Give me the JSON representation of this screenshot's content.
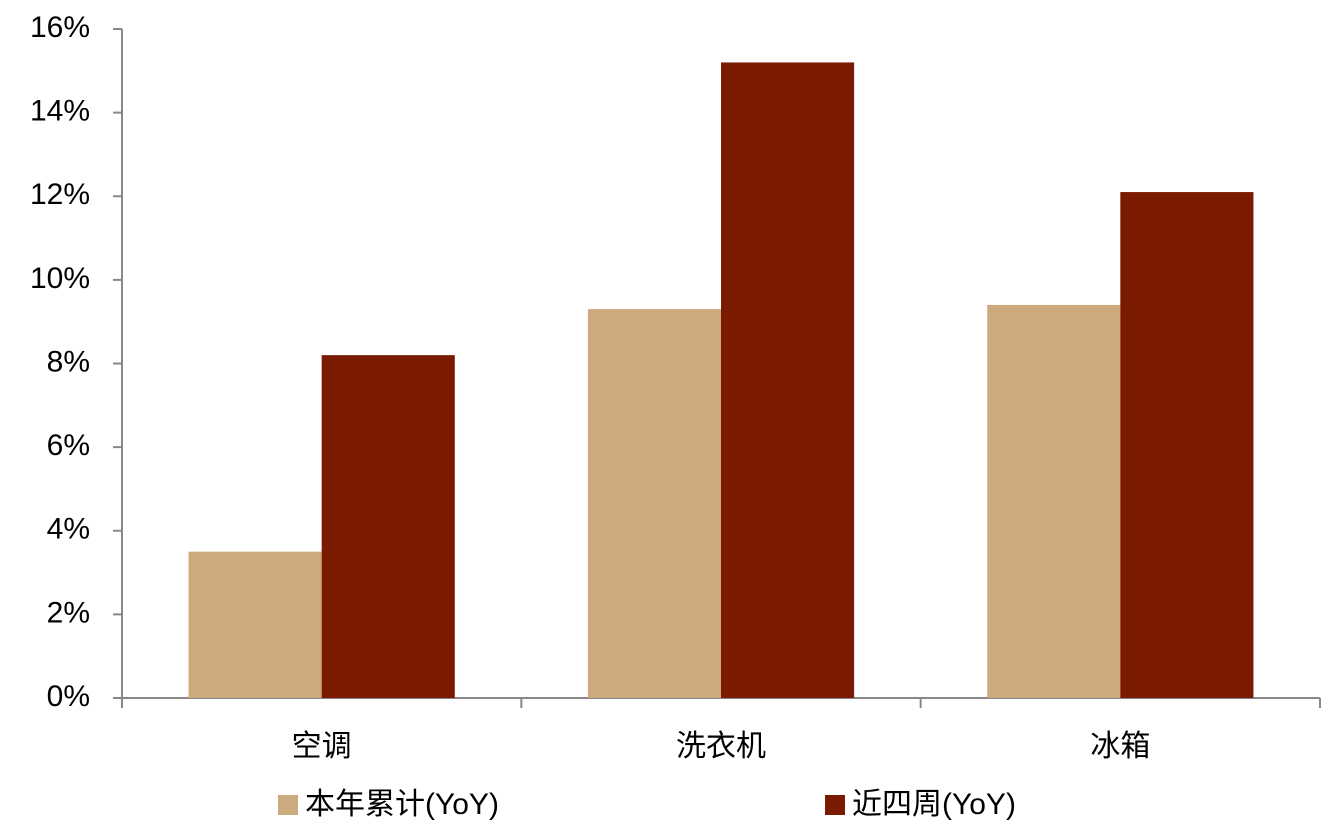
{
  "chart_data": {
    "type": "bar",
    "categories": [
      "空调",
      "洗衣机",
      "冰箱"
    ],
    "series": [
      {
        "name": "本年累计(YoY)",
        "color": "#cdaa7d",
        "values": [
          3.5,
          9.3,
          9.4
        ]
      },
      {
        "name": "近四周(YoY)",
        "color": "#7a1a00",
        "values": [
          8.2,
          15.2,
          12.1
        ]
      }
    ],
    "ylim": [
      0,
      16
    ],
    "yticks": [
      {
        "value": 0,
        "label": "0%"
      },
      {
        "value": 2,
        "label": "2%"
      },
      {
        "value": 4,
        "label": "4%"
      },
      {
        "value": 6,
        "label": "6%"
      },
      {
        "value": 8,
        "label": "8%"
      },
      {
        "value": 10,
        "label": "10%"
      },
      {
        "value": 12,
        "label": "12%"
      },
      {
        "value": 14,
        "label": "14%"
      },
      {
        "value": 16,
        "label": "16%"
      }
    ],
    "grid": false
  }
}
